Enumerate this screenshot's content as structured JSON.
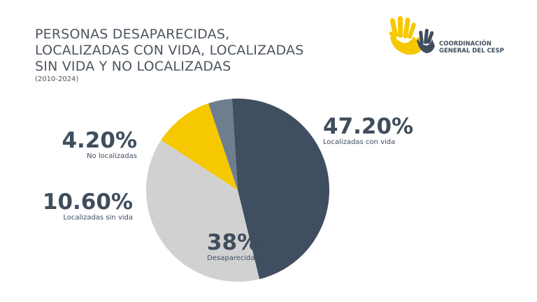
{
  "header": {
    "title_lines": [
      "PERSONAS DESAPARECIDAS,",
      "LOCALIZADAS CON VIDA, LOCALIZADAS",
      "SIN VIDA Y NO LOCALIZADAS"
    ],
    "subtitle": "(2010-2024)"
  },
  "logo": {
    "line1": "COORDINACIÓN",
    "line2": "GENERAL DEL CESP",
    "colors": {
      "yellow": "#f5c800",
      "dark": "#3f4d5d"
    }
  },
  "chart_data": {
    "type": "pie",
    "title": "PERSONAS DESAPARECIDAS, LOCALIZADAS CON VIDA, LOCALIZADAS SIN VIDA Y NO LOCALIZADAS",
    "subtitle": "(2010-2024)",
    "unit": "%",
    "slices": [
      {
        "name": "Localizadas con vida",
        "value": 47.2,
        "label": "47.20%",
        "color": "#3f4f61"
      },
      {
        "name": "Desaparecidas",
        "value": 38,
        "label": "38%",
        "color": "#d1d1d1"
      },
      {
        "name": "Localizadas sin vida",
        "value": 10.6,
        "label": "10.60%",
        "color": "#f5c800"
      },
      {
        "name": "No localizadas",
        "value": 4.2,
        "label": "4.20%",
        "color": "#6f7e8f"
      }
    ]
  }
}
